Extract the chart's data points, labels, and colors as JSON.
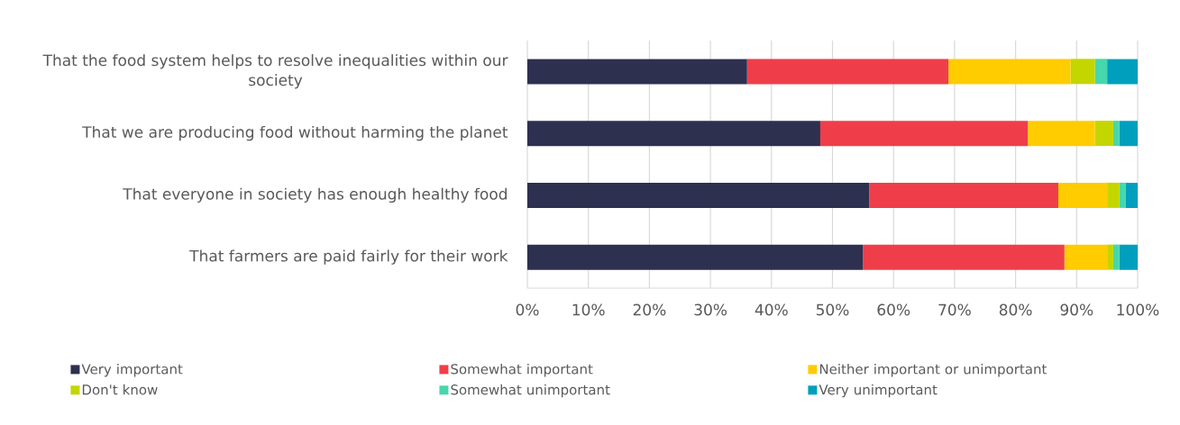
{
  "chart_data": {
    "type": "bar",
    "orientation": "horizontal",
    "stacked": true,
    "grid": "x",
    "legend": "bottom",
    "categories": [
      "That the food system helps to resolve inequalities within our society",
      "That we are producing food without harming the planet",
      "That everyone in society has enough healthy food",
      "That farmers are paid fairly for their work"
    ],
    "xlim": [
      0,
      100
    ],
    "xticks": [
      {
        "value": 0,
        "label": "0%"
      },
      {
        "value": 10,
        "label": "10%"
      },
      {
        "value": 20,
        "label": "20%"
      },
      {
        "value": 30,
        "label": "30%"
      },
      {
        "value": 40,
        "label": "40%"
      },
      {
        "value": 50,
        "label": "50%"
      },
      {
        "value": 60,
        "label": "60%"
      },
      {
        "value": 70,
        "label": "70%"
      },
      {
        "value": 80,
        "label": "80%"
      },
      {
        "value": 90,
        "label": "90%"
      },
      {
        "value": 100,
        "label": "100%"
      }
    ],
    "series": [
      {
        "name": "Very important",
        "color": "#2e3050",
        "values": [
          36,
          48,
          56,
          55
        ]
      },
      {
        "name": "Somewhat important",
        "color": "#ef3e4a",
        "values": [
          33,
          34,
          31,
          33
        ]
      },
      {
        "name": "Neither important or unimportant",
        "color": "#ffcc00",
        "values": [
          20,
          11,
          8,
          7
        ]
      },
      {
        "name": "Don't know",
        "color": "#c3d600",
        "values": [
          4,
          3,
          2,
          1
        ]
      },
      {
        "name": "Somewhat unimportant",
        "color": "#46d7ac",
        "values": [
          2,
          1,
          1,
          1
        ]
      },
      {
        "name": "Very unimportant",
        "color": "#009fbd",
        "values": [
          5,
          3,
          2,
          3
        ]
      }
    ]
  }
}
